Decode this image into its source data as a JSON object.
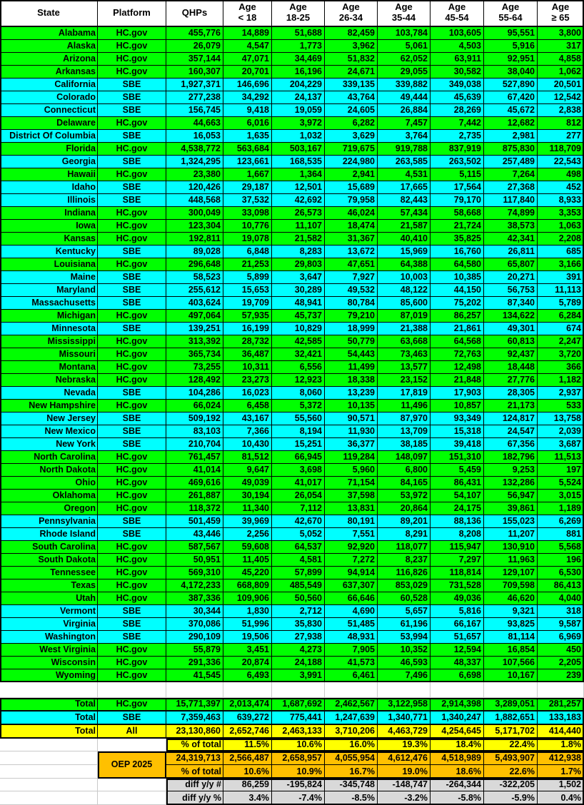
{
  "chart_data": {
    "type": "table",
    "columns": [
      [
        "State"
      ],
      [
        "Platform"
      ],
      [
        "QHPs"
      ],
      [
        "Age",
        "< 18"
      ],
      [
        "Age",
        "18-25"
      ],
      [
        "Age",
        "26-34"
      ],
      [
        "Age",
        "35-44"
      ],
      [
        "Age",
        "45-54"
      ],
      [
        "Age",
        "55-64"
      ],
      [
        "Age",
        "≥ 65"
      ]
    ],
    "rows": [
      {
        "state": "Alabama",
        "platform": "HC.gov",
        "values": [
          "455,776",
          "14,889",
          "51,688",
          "82,459",
          "103,784",
          "103,605",
          "95,551",
          "3,800"
        ]
      },
      {
        "state": "Alaska",
        "platform": "HC.gov",
        "values": [
          "26,079",
          "4,547",
          "1,773",
          "3,962",
          "5,061",
          "4,503",
          "5,916",
          "317"
        ]
      },
      {
        "state": "Arizona",
        "platform": "HC.gov",
        "values": [
          "357,144",
          "47,071",
          "34,469",
          "51,832",
          "62,052",
          "63,911",
          "92,951",
          "4,858"
        ]
      },
      {
        "state": "Arkansas",
        "platform": "HC.gov",
        "values": [
          "160,307",
          "20,701",
          "16,196",
          "24,671",
          "29,055",
          "30,582",
          "38,040",
          "1,062"
        ]
      },
      {
        "state": "California",
        "platform": "SBE",
        "values": [
          "1,927,371",
          "146,696",
          "204,229",
          "339,135",
          "339,882",
          "349,038",
          "527,890",
          "20,501"
        ]
      },
      {
        "state": "Colorado",
        "platform": "SBE",
        "values": [
          "277,238",
          "34,292",
          "24,137",
          "43,764",
          "49,444",
          "45,639",
          "67,420",
          "12,542"
        ]
      },
      {
        "state": "Connecticut",
        "platform": "SBE",
        "values": [
          "156,745",
          "9,418",
          "19,059",
          "24,605",
          "26,884",
          "28,269",
          "45,672",
          "2,838"
        ]
      },
      {
        "state": "Delaware",
        "platform": "HC.gov",
        "values": [
          "44,663",
          "6,016",
          "3,972",
          "6,282",
          "7,457",
          "7,442",
          "12,682",
          "812"
        ]
      },
      {
        "state": "District Of Columbia",
        "platform": "SBE",
        "values": [
          "16,053",
          "1,635",
          "1,032",
          "3,629",
          "3,764",
          "2,735",
          "2,981",
          "277"
        ]
      },
      {
        "state": "Florida",
        "platform": "HC.gov",
        "values": [
          "4,538,772",
          "563,684",
          "503,167",
          "719,675",
          "919,788",
          "837,919",
          "875,830",
          "118,709"
        ]
      },
      {
        "state": "Georgia",
        "platform": "SBE",
        "values": [
          "1,324,295",
          "123,661",
          "168,535",
          "224,980",
          "263,585",
          "263,502",
          "257,489",
          "22,543"
        ]
      },
      {
        "state": "Hawaii",
        "platform": "HC.gov",
        "values": [
          "23,380",
          "1,667",
          "1,364",
          "2,941",
          "4,531",
          "5,115",
          "7,264",
          "498"
        ]
      },
      {
        "state": "Idaho",
        "platform": "SBE",
        "values": [
          "120,426",
          "29,187",
          "12,501",
          "15,689",
          "17,665",
          "17,564",
          "27,368",
          "452"
        ]
      },
      {
        "state": "Illinois",
        "platform": "SBE",
        "values": [
          "448,568",
          "37,532",
          "42,692",
          "79,958",
          "82,443",
          "79,170",
          "117,840",
          "8,933"
        ]
      },
      {
        "state": "Indiana",
        "platform": "HC.gov",
        "values": [
          "300,049",
          "33,098",
          "26,573",
          "46,024",
          "57,434",
          "58,668",
          "74,899",
          "3,353"
        ]
      },
      {
        "state": "Iowa",
        "platform": "HC.gov",
        "values": [
          "123,304",
          "10,776",
          "11,107",
          "18,474",
          "21,587",
          "21,724",
          "38,573",
          "1,063"
        ]
      },
      {
        "state": "Kansas",
        "platform": "HC.gov",
        "values": [
          "192,811",
          "19,078",
          "21,582",
          "31,367",
          "40,410",
          "35,825",
          "42,341",
          "2,208"
        ]
      },
      {
        "state": "Kentucky",
        "platform": "SBE",
        "values": [
          "89,028",
          "6,848",
          "8,283",
          "13,672",
          "15,969",
          "16,760",
          "26,811",
          "685"
        ]
      },
      {
        "state": "Louisiana",
        "platform": "HC.gov",
        "values": [
          "296,648",
          "21,253",
          "29,803",
          "47,651",
          "64,388",
          "64,580",
          "65,807",
          "3,166"
        ]
      },
      {
        "state": "Maine",
        "platform": "SBE",
        "values": [
          "58,523",
          "5,899",
          "3,647",
          "7,927",
          "10,003",
          "10,385",
          "20,271",
          "391"
        ]
      },
      {
        "state": "Maryland",
        "platform": "SBE",
        "values": [
          "255,612",
          "15,653",
          "30,289",
          "49,532",
          "48,122",
          "44,150",
          "56,753",
          "11,113"
        ]
      },
      {
        "state": "Massachusetts",
        "platform": "SBE",
        "values": [
          "403,624",
          "19,709",
          "48,941",
          "80,784",
          "85,600",
          "75,202",
          "87,340",
          "5,789"
        ]
      },
      {
        "state": "Michigan",
        "platform": "HC.gov",
        "values": [
          "497,064",
          "57,935",
          "45,737",
          "79,210",
          "87,019",
          "86,257",
          "134,622",
          "6,284"
        ]
      },
      {
        "state": "Minnesota",
        "platform": "SBE",
        "values": [
          "139,251",
          "16,199",
          "10,829",
          "18,999",
          "21,388",
          "21,861",
          "49,301",
          "674"
        ]
      },
      {
        "state": "Mississippi",
        "platform": "HC.gov",
        "values": [
          "313,392",
          "28,732",
          "42,585",
          "50,779",
          "63,668",
          "64,568",
          "60,813",
          "2,247"
        ]
      },
      {
        "state": "Missouri",
        "platform": "HC.gov",
        "values": [
          "365,734",
          "36,487",
          "32,421",
          "54,443",
          "73,463",
          "72,763",
          "92,437",
          "3,720"
        ]
      },
      {
        "state": "Montana",
        "platform": "HC.gov",
        "values": [
          "73,255",
          "10,311",
          "6,556",
          "11,499",
          "13,577",
          "12,498",
          "18,448",
          "366"
        ]
      },
      {
        "state": "Nebraska",
        "platform": "HC.gov",
        "values": [
          "128,492",
          "23,273",
          "12,923",
          "18,338",
          "23,152",
          "21,848",
          "27,776",
          "1,182"
        ]
      },
      {
        "state": "Nevada",
        "platform": "SBE",
        "values": [
          "104,286",
          "16,023",
          "8,060",
          "13,239",
          "17,819",
          "17,903",
          "28,305",
          "2,937"
        ]
      },
      {
        "state": "New Hampshire",
        "platform": "HC.gov",
        "values": [
          "66,024",
          "6,458",
          "5,372",
          "10,135",
          "11,496",
          "10,857",
          "21,173",
          "533"
        ]
      },
      {
        "state": "New Jersey",
        "platform": "SBE",
        "values": [
          "509,192",
          "43,167",
          "55,560",
          "90,571",
          "87,970",
          "93,349",
          "124,817",
          "13,758"
        ]
      },
      {
        "state": "New Mexico",
        "platform": "SBE",
        "values": [
          "83,103",
          "7,366",
          "8,194",
          "11,930",
          "13,709",
          "15,318",
          "24,547",
          "2,039"
        ]
      },
      {
        "state": "New York",
        "platform": "SBE",
        "values": [
          "210,704",
          "10,430",
          "15,251",
          "36,377",
          "38,185",
          "39,418",
          "67,356",
          "3,687"
        ]
      },
      {
        "state": "North Carolina",
        "platform": "HC.gov",
        "values": [
          "761,457",
          "81,512",
          "66,945",
          "119,284",
          "148,097",
          "151,310",
          "182,796",
          "11,513"
        ]
      },
      {
        "state": "North Dakota",
        "platform": "HC.gov",
        "values": [
          "41,014",
          "9,647",
          "3,698",
          "5,960",
          "6,800",
          "5,459",
          "9,253",
          "197"
        ]
      },
      {
        "state": "Ohio",
        "platform": "HC.gov",
        "values": [
          "469,616",
          "49,039",
          "41,017",
          "71,154",
          "84,165",
          "86,431",
          "132,286",
          "5,524"
        ]
      },
      {
        "state": "Oklahoma",
        "platform": "HC.gov",
        "values": [
          "261,887",
          "30,194",
          "26,054",
          "37,598",
          "53,972",
          "54,107",
          "56,947",
          "3,015"
        ]
      },
      {
        "state": "Oregon",
        "platform": "HC.gov",
        "values": [
          "118,372",
          "11,340",
          "7,112",
          "13,831",
          "20,864",
          "24,175",
          "39,861",
          "1,189"
        ]
      },
      {
        "state": "Pennsylvania",
        "platform": "SBE",
        "values": [
          "501,459",
          "39,969",
          "42,670",
          "80,191",
          "89,201",
          "88,136",
          "155,023",
          "6,269"
        ]
      },
      {
        "state": "Rhode Island",
        "platform": "SBE",
        "values": [
          "43,446",
          "2,256",
          "5,052",
          "7,551",
          "8,291",
          "8,208",
          "11,207",
          "881"
        ]
      },
      {
        "state": "South Carolina",
        "platform": "HC.gov",
        "values": [
          "587,567",
          "59,608",
          "64,537",
          "92,920",
          "118,077",
          "115,947",
          "130,910",
          "5,568"
        ]
      },
      {
        "state": "South Dakota",
        "platform": "HC.gov",
        "values": [
          "50,951",
          "11,405",
          "4,581",
          "7,272",
          "8,237",
          "7,297",
          "11,963",
          "196"
        ]
      },
      {
        "state": "Tennessee",
        "platform": "HC.gov",
        "values": [
          "569,310",
          "45,220",
          "57,899",
          "94,914",
          "116,826",
          "118,814",
          "129,107",
          "6,530"
        ]
      },
      {
        "state": "Texas",
        "platform": "HC.gov",
        "values": [
          "4,172,233",
          "668,809",
          "485,549",
          "637,307",
          "853,029",
          "731,528",
          "709,598",
          "86,413"
        ]
      },
      {
        "state": "Utah",
        "platform": "HC.gov",
        "values": [
          "387,336",
          "109,906",
          "50,560",
          "66,646",
          "60,528",
          "49,036",
          "46,620",
          "4,040"
        ]
      },
      {
        "state": "Vermont",
        "platform": "SBE",
        "values": [
          "30,344",
          "1,830",
          "2,712",
          "4,690",
          "5,657",
          "5,816",
          "9,321",
          "318"
        ]
      },
      {
        "state": "Virginia",
        "platform": "SBE",
        "values": [
          "370,086",
          "51,996",
          "35,830",
          "51,485",
          "61,196",
          "66,167",
          "93,825",
          "9,587"
        ]
      },
      {
        "state": "Washington",
        "platform": "SBE",
        "values": [
          "290,109",
          "19,506",
          "27,938",
          "48,931",
          "53,994",
          "51,657",
          "81,114",
          "6,969"
        ]
      },
      {
        "state": "West Virginia",
        "platform": "HC.gov",
        "values": [
          "55,879",
          "3,451",
          "4,273",
          "7,905",
          "10,352",
          "12,594",
          "16,854",
          "450"
        ]
      },
      {
        "state": "Wisconsin",
        "platform": "HC.gov",
        "values": [
          "291,336",
          "20,874",
          "24,188",
          "41,573",
          "46,593",
          "48,337",
          "107,566",
          "2,205"
        ]
      },
      {
        "state": "Wyoming",
        "platform": "HC.gov",
        "values": [
          "41,545",
          "6,493",
          "3,991",
          "6,461",
          "7,496",
          "6,698",
          "10,167",
          "239"
        ]
      }
    ],
    "totals": [
      {
        "label": "Total",
        "platform": "HC.gov",
        "values": [
          "15,771,397",
          "2,013,474",
          "1,687,692",
          "2,462,567",
          "3,122,958",
          "2,914,398",
          "3,289,051",
          "281,257"
        ]
      },
      {
        "label": "Total",
        "platform": "SBE",
        "values": [
          "7,359,463",
          "639,272",
          "775,441",
          "1,247,639",
          "1,340,771",
          "1,340,247",
          "1,882,651",
          "133,183"
        ]
      },
      {
        "label": "Total",
        "platform": "All",
        "values": [
          "23,130,860",
          "2,652,746",
          "2,463,133",
          "3,710,206",
          "4,463,729",
          "4,254,645",
          "5,171,702",
          "414,440"
        ]
      }
    ],
    "pct_of_total": {
      "label": "% of total",
      "values": [
        "11.5%",
        "10.6%",
        "16.0%",
        "19.3%",
        "18.4%",
        "22.4%",
        "1.8%"
      ]
    },
    "oep_2025": {
      "label": "OEP 2025",
      "totals": [
        "24,319,713",
        "2,566,487",
        "2,658,957",
        "4,055,954",
        "4,612,476",
        "4,518,989",
        "5,493,907",
        "412,938"
      ],
      "pct_label": "% of total",
      "pct": [
        "10.6%",
        "10.9%",
        "16.7%",
        "19.0%",
        "18.6%",
        "22.6%",
        "1.7%"
      ]
    },
    "diff_yoy_num": {
      "label": "diff y/y #",
      "values": [
        "86,259",
        "-195,824",
        "-345,748",
        "-148,747",
        "-264,344",
        "-322,205",
        "1,502"
      ]
    },
    "diff_yoy_pct": {
      "label": "diff y/y %",
      "values": [
        "3.4%",
        "-7.4%",
        "-8.5%",
        "-3.2%",
        "-5.8%",
        "-5.9%",
        "0.4%"
      ]
    }
  },
  "colors": {
    "hcgov_row": "#00FF00",
    "sbe_row": "#00FFFF",
    "total_all_row": "#FFFF00",
    "oep_row": "#FFC000",
    "diff_row": "#D9D9D9",
    "border": "#000000",
    "faint_gridline": "#C9C9C9"
  }
}
